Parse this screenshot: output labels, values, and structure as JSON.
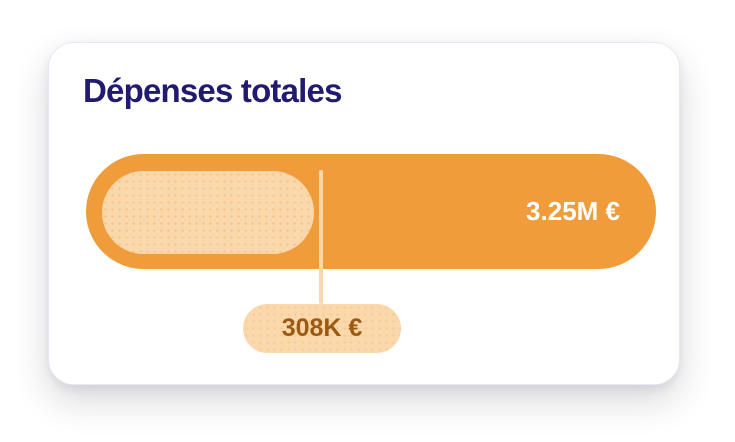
{
  "card": {
    "title": "Dépenses totales",
    "total_label": "3.25M €",
    "callout_label": "308K €"
  },
  "colors": {
    "orange": "#f09c3b",
    "peach": "#fbd8ab",
    "navy": "#201b70",
    "brown": "#9a5a14",
    "card-bg": "#ffffff",
    "card-border": "#e8e9f4"
  },
  "chart_data": {
    "type": "bar",
    "orientation": "horizontal",
    "title": "Dépenses totales",
    "currency": "EUR",
    "values": [
      {
        "label": "3.25M €",
        "value": 3250000
      },
      {
        "label": "308K €",
        "value": 308000
      }
    ],
    "legend": false,
    "axes": false,
    "notes": "Single KPI pill bar; total value right-aligned in orange bar; inner peach pill with marker line pointing to callout value below."
  }
}
